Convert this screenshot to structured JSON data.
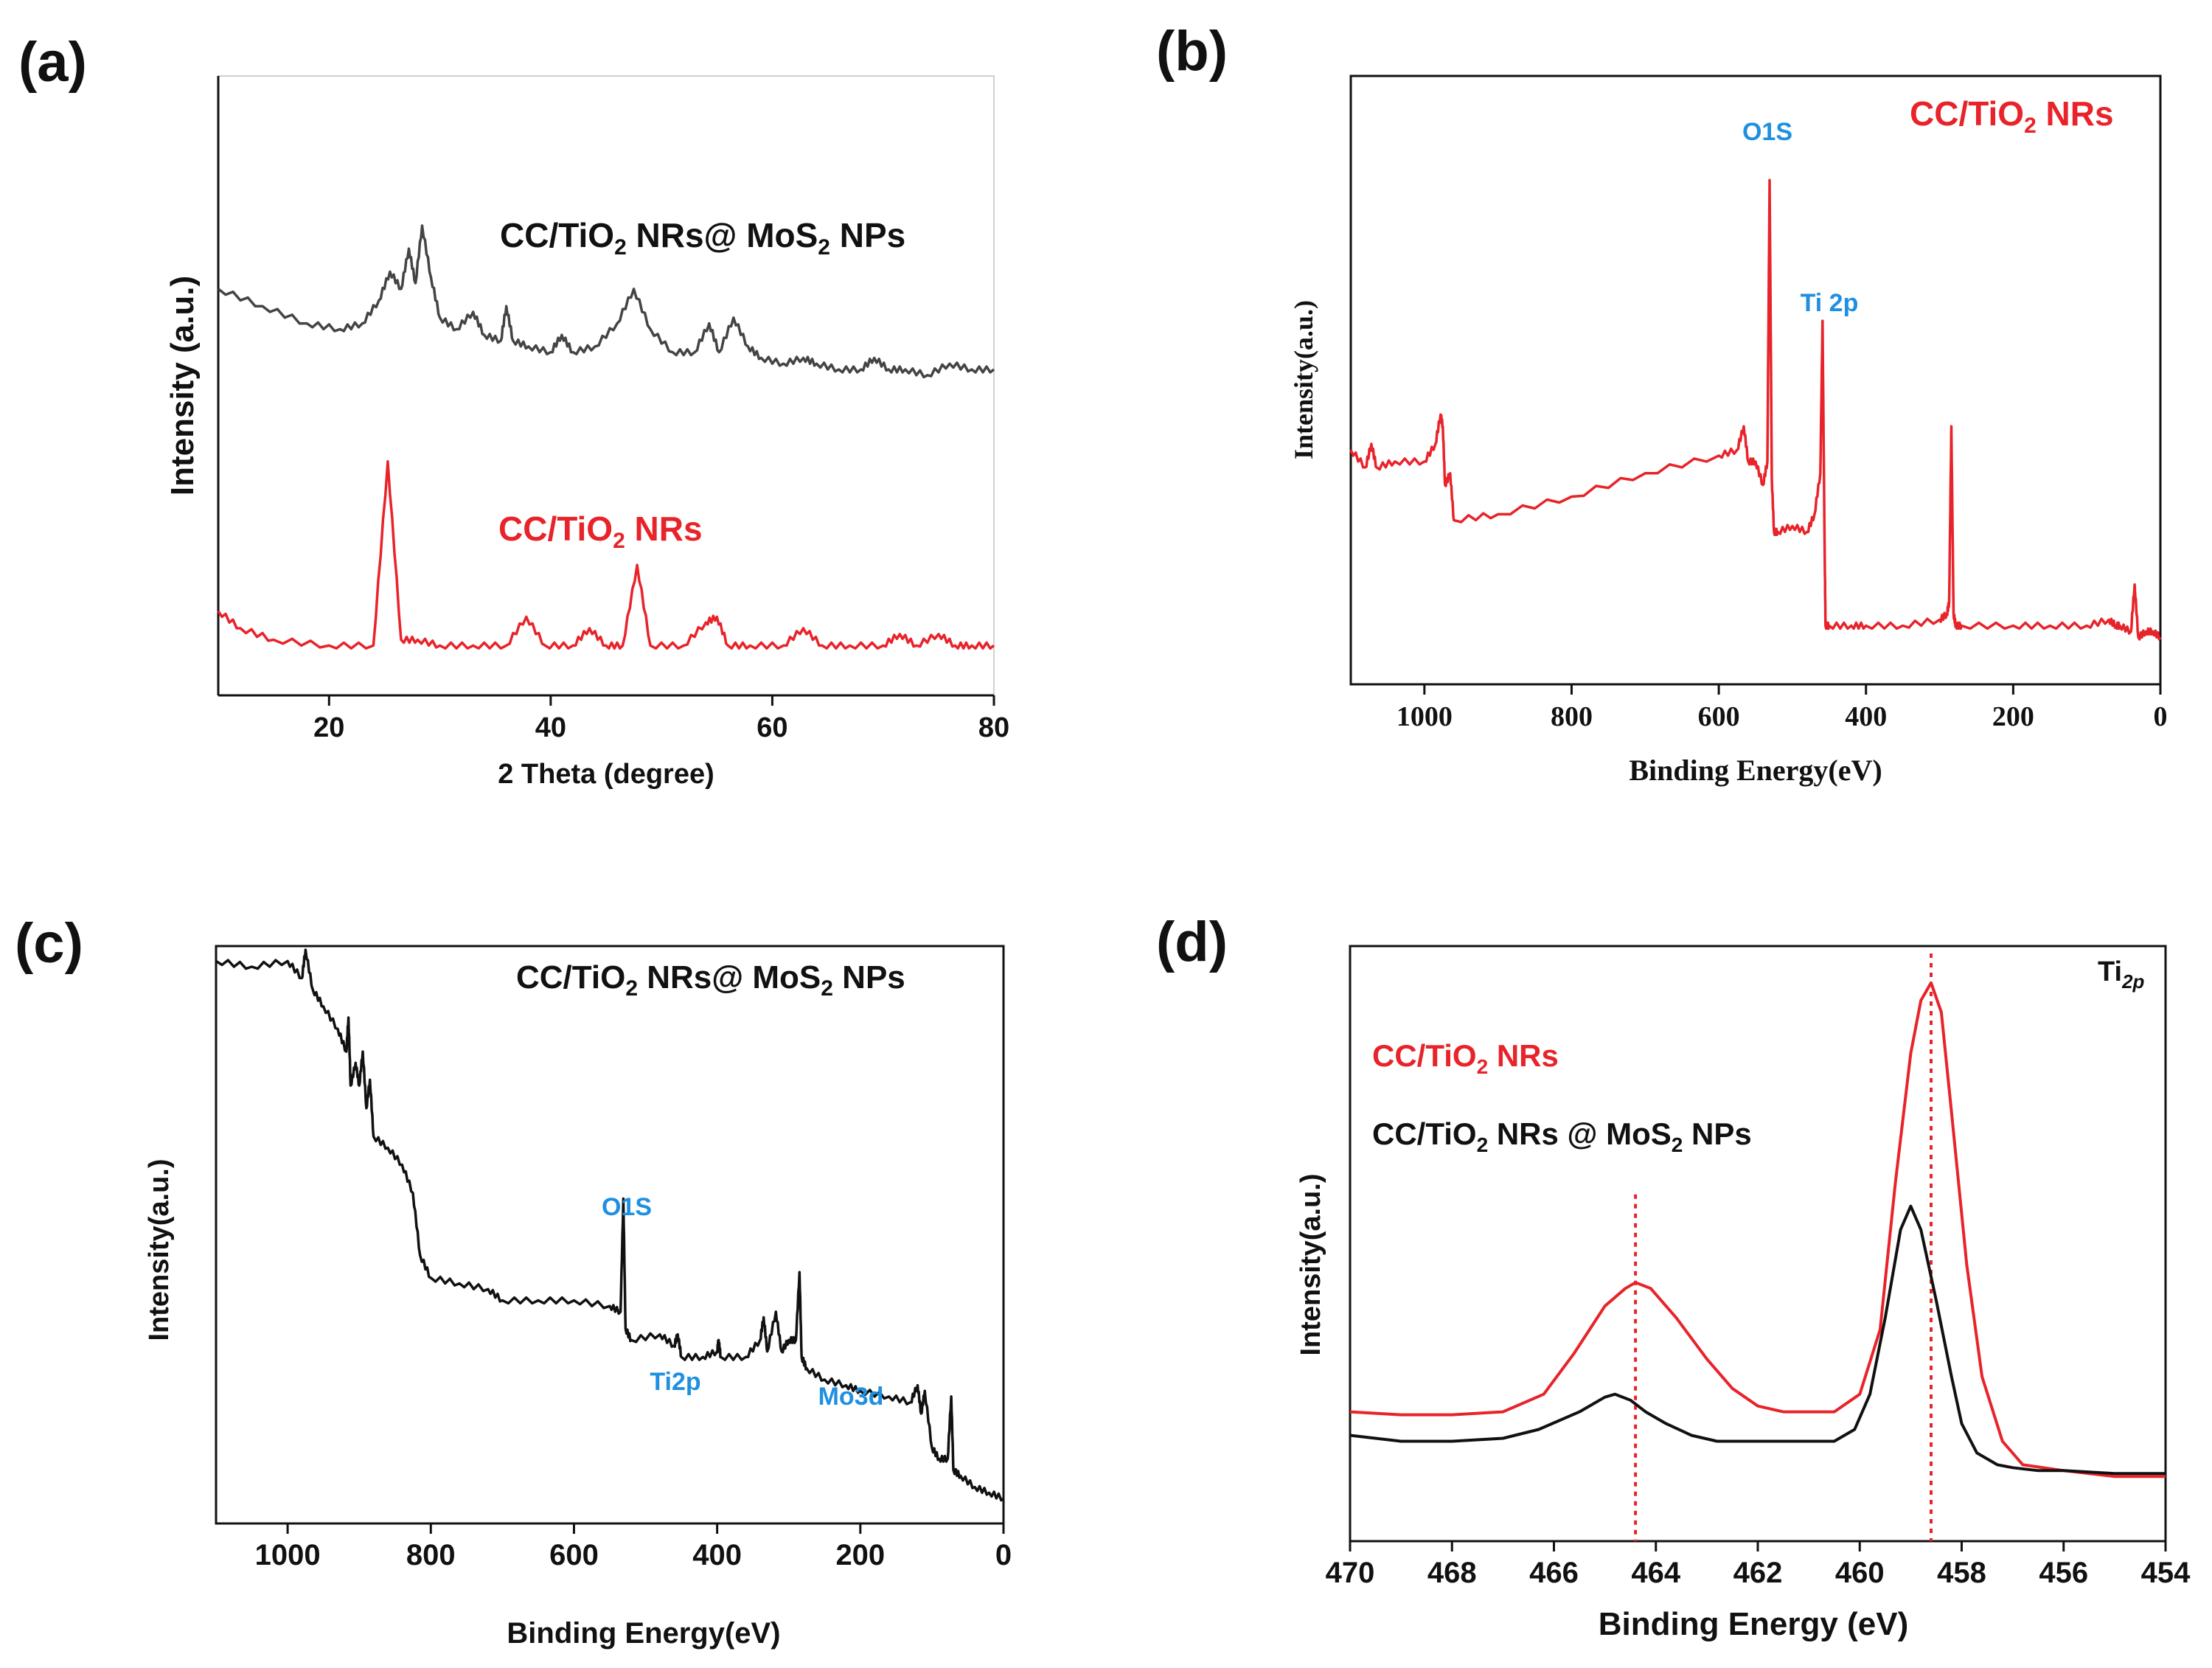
{
  "colors": {
    "red": "#e8232a",
    "black": "#111111",
    "gray": "#444444",
    "blue": "#1f8fe0"
  },
  "chart_data": [
    {
      "id": "a",
      "type": "line",
      "panel_label": "(a)",
      "xlabel": "2 Theta (degree)",
      "ylabel": "Intensity (a.u.)",
      "xlim": [
        10,
        80
      ],
      "ylim": [
        0,
        100
      ],
      "xticks": [
        20,
        40,
        60,
        80
      ],
      "xtick_labels": [
        "20",
        "40",
        "60",
        "80"
      ],
      "grid": false,
      "series": [
        {
          "name": "CC/TiO2 NRs@ MoS2 NPs",
          "color": "gray",
          "x": [
            10,
            14,
            18,
            21,
            23,
            24.5,
            25.5,
            26.5,
            27.2,
            27.8,
            28.4,
            29.2,
            30,
            31.5,
            33,
            34,
            35.5,
            36,
            36.6,
            38,
            40,
            41,
            42,
            44,
            46,
            47.5,
            49,
            51,
            53,
            54.3,
            55.2,
            56.5,
            57.8,
            59,
            61,
            62.8,
            64,
            66,
            68,
            69.2,
            70.5,
            72,
            74,
            76,
            78,
            80
          ],
          "y": [
            69,
            66,
            63,
            62,
            63,
            67,
            72,
            69,
            76,
            70,
            80,
            71,
            64,
            62,
            65,
            61,
            60,
            66,
            60,
            59,
            58,
            61,
            58,
            59,
            63,
            69,
            62,
            58,
            58,
            63,
            58,
            64,
            59,
            57,
            56,
            57,
            56,
            55,
            55,
            57,
            55,
            55,
            54,
            56,
            55,
            55
          ]
        },
        {
          "name": "CC/TiO2 NRs",
          "color": "red",
          "x": [
            10,
            12,
            15,
            20,
            24,
            25.3,
            26.5,
            28,
            30,
            33,
            36,
            37.8,
            39.5,
            42,
            43.5,
            45,
            46.5,
            47.8,
            49,
            52,
            54,
            55,
            56,
            58,
            61,
            62.8,
            64.5,
            67,
            70,
            71.5,
            73,
            75,
            76.5,
            78,
            80
          ],
          "y": [
            13,
            10,
            8,
            7,
            7,
            39,
            8,
            8,
            7,
            7,
            7,
            12,
            7,
            7,
            10,
            7,
            7,
            21,
            7,
            7,
            11,
            12,
            7,
            7,
            7,
            10,
            7,
            7,
            7,
            9,
            7,
            9,
            7,
            7,
            7
          ]
        }
      ],
      "annotations": [
        {
          "text_main": "CC/TiO",
          "sub": "2",
          "text_tail": " NRs@ MoS",
          "sub2": "2",
          "text_end": " NPs",
          "color": "black"
        },
        {
          "text_main": "CC/TiO",
          "sub": "2",
          "text_tail": " NRs",
          "color": "red"
        }
      ]
    },
    {
      "id": "b",
      "type": "line",
      "panel_label": "(b)",
      "xlabel": "Binding Energy(eV)",
      "ylabel": "Intensity(a.u.)",
      "xlim": [
        1100,
        0
      ],
      "ylim": [
        0,
        100
      ],
      "xticks": [
        1000,
        800,
        600,
        400,
        200,
        0
      ],
      "xtick_labels": [
        "1000",
        "800",
        "600",
        "400",
        "200",
        "0"
      ],
      "grid": false,
      "series": [
        {
          "name": "CC/TiO2 NRs",
          "color": "red",
          "x": [
            1100,
            1080,
            1072,
            1065,
            1040,
            1000,
            985,
            978,
            975,
            972,
            965,
            960,
            900,
            800,
            700,
            600,
            575,
            566,
            560,
            550,
            540,
            534,
            531,
            528,
            525,
            520,
            500,
            480,
            470,
            462,
            459,
            456,
            455,
            450,
            420,
            400,
            350,
            300,
            290,
            287,
            284,
            281,
            278,
            270,
            200,
            150,
            100,
            70,
            60,
            55,
            40,
            35,
            30,
            20,
            10,
            0
          ],
          "y": [
            39,
            36,
            40,
            36,
            37,
            37,
            40,
            45,
            43,
            33,
            35,
            27,
            28,
            31,
            35,
            38,
            39,
            43,
            37,
            37,
            33,
            37,
            85,
            34,
            25,
            25,
            26,
            25,
            28,
            35,
            61,
            20,
            9,
            9,
            9,
            9,
            9,
            10,
            11,
            13,
            43,
            11,
            9,
            9,
            9,
            9,
            9,
            10,
            9,
            9,
            8,
            16,
            7,
            8,
            8,
            7
          ]
        }
      ],
      "annotations": [
        {
          "text": "O1S",
          "color": "blue"
        },
        {
          "text": "Ti 2p",
          "color": "blue"
        },
        {
          "text_main": "CC/TiO",
          "sub": "2",
          "text_tail": " NRs",
          "color": "red"
        }
      ]
    },
    {
      "id": "c",
      "type": "line",
      "panel_label": "(c)",
      "xlabel": "Binding Energy(eV)",
      "ylabel": "Intensity(a.u.)",
      "xlim": [
        1100,
        0
      ],
      "ylim": [
        0,
        100
      ],
      "xticks": [
        1000,
        800,
        600,
        400,
        200,
        0
      ],
      "xtick_labels": [
        "1000",
        "800",
        "600",
        "400",
        "200",
        "0"
      ],
      "grid": false,
      "series": [
        {
          "name": "CC/TiO2 NRs@ MoS2 NPs",
          "color": "black",
          "x": [
            1100,
            1050,
            1000,
            980,
            975,
            965,
            950,
            930,
            918,
            915,
            912,
            905,
            900,
            895,
            890,
            885,
            880,
            860,
            840,
            825,
            815,
            800,
            760,
            720,
            700,
            650,
            600,
            550,
            535,
            531,
            528,
            520,
            480,
            460,
            455,
            450,
            420,
            400,
            398,
            395,
            360,
            340,
            335,
            330,
            318,
            310,
            300,
            290,
            285,
            282,
            275,
            250,
            220,
            200,
            160,
            130,
            120,
            115,
            110,
            100,
            90,
            78,
            73,
            70,
            60,
            40,
            20,
            0
          ],
          "y": [
            98,
            97,
            98,
            95,
            100,
            93,
            90,
            86,
            82,
            88,
            76,
            80,
            76,
            82,
            72,
            77,
            67,
            65,
            62,
            57,
            46,
            42,
            41,
            40,
            38,
            38,
            38,
            37,
            36,
            56,
            33,
            31,
            32,
            30,
            32,
            28,
            28,
            29,
            31,
            28,
            28,
            31,
            35,
            29,
            36,
            29,
            31,
            31,
            43,
            28,
            26,
            24,
            23,
            22,
            21,
            20,
            23,
            18,
            22,
            12,
            10,
            10,
            21,
            8,
            7,
            5,
            4,
            3
          ]
        }
      ],
      "annotations": [
        {
          "text": "O1S",
          "color": "blue"
        },
        {
          "text": "Ti2p",
          "color": "blue"
        },
        {
          "text": "Mo3d",
          "color": "blue"
        },
        {
          "text_main": "CC/TiO",
          "sub": "2",
          "text_tail": " NRs@ MoS",
          "sub2": "2",
          "text_end": " NPs",
          "color": "black"
        }
      ]
    },
    {
      "id": "d",
      "type": "line",
      "panel_label": "(d)",
      "xlabel": "Binding Energy (eV)",
      "ylabel": "Intensity(a.u.)",
      "xlim": [
        470,
        454
      ],
      "ylim": [
        0,
        100
      ],
      "xticks": [
        470,
        468,
        466,
        464,
        462,
        460,
        458,
        456,
        454
      ],
      "xtick_labels": [
        "470",
        "468",
        "466",
        "464",
        "462",
        "460",
        "458",
        "456",
        "454"
      ],
      "grid": false,
      "dashed_markers": [
        464.4,
        458.6
      ],
      "series": [
        {
          "name": "CC/TiO2 NRs",
          "color": "red",
          "x": [
            470,
            469,
            468,
            467,
            466.2,
            465.6,
            465,
            464.6,
            464.4,
            464.1,
            463.6,
            463,
            462.5,
            462,
            461.5,
            461,
            460.5,
            460,
            459.6,
            459.3,
            459,
            458.8,
            458.6,
            458.4,
            458.2,
            457.9,
            457.6,
            457.2,
            456.8,
            456,
            455,
            454
          ],
          "y": [
            21,
            20.5,
            20.5,
            21,
            24,
            31,
            39,
            42,
            43,
            42,
            37,
            30,
            25,
            22,
            21,
            21,
            21,
            24,
            35,
            60,
            82,
            91,
            94,
            89,
            72,
            46,
            27,
            16,
            12,
            11,
            10,
            10
          ]
        },
        {
          "name": "CC/TiO2 NRs @ MoS2 NPs",
          "color": "black",
          "x": [
            470,
            469,
            468,
            467,
            466.3,
            465.5,
            465,
            464.8,
            464.5,
            464.2,
            463.8,
            463.3,
            462.8,
            462.2,
            461.5,
            461,
            460.5,
            460.1,
            459.8,
            459.5,
            459.2,
            459,
            458.8,
            458.5,
            458.2,
            458,
            457.7,
            457.3,
            457,
            456.5,
            456,
            455,
            454
          ],
          "y": [
            17,
            16,
            16,
            16.5,
            18,
            21,
            23.5,
            24,
            23,
            21,
            19,
            17,
            16,
            16,
            16,
            16,
            16,
            18,
            24,
            37,
            52,
            56,
            52,
            40,
            27,
            19,
            14,
            12,
            11.5,
            11,
            11,
            10.5,
            10.5
          ]
        }
      ],
      "annotations": [
        {
          "text": "Ti",
          "sub": "2p",
          "color": "black"
        },
        {
          "text_main": "CC/TiO",
          "sub": "2",
          "text_tail": " NRs",
          "color": "red"
        },
        {
          "text_main": "CC/TiO",
          "sub": "2",
          "text_tail": " NRs @ MoS",
          "sub2": "2",
          "text_end": " NPs",
          "color": "black"
        }
      ]
    }
  ]
}
